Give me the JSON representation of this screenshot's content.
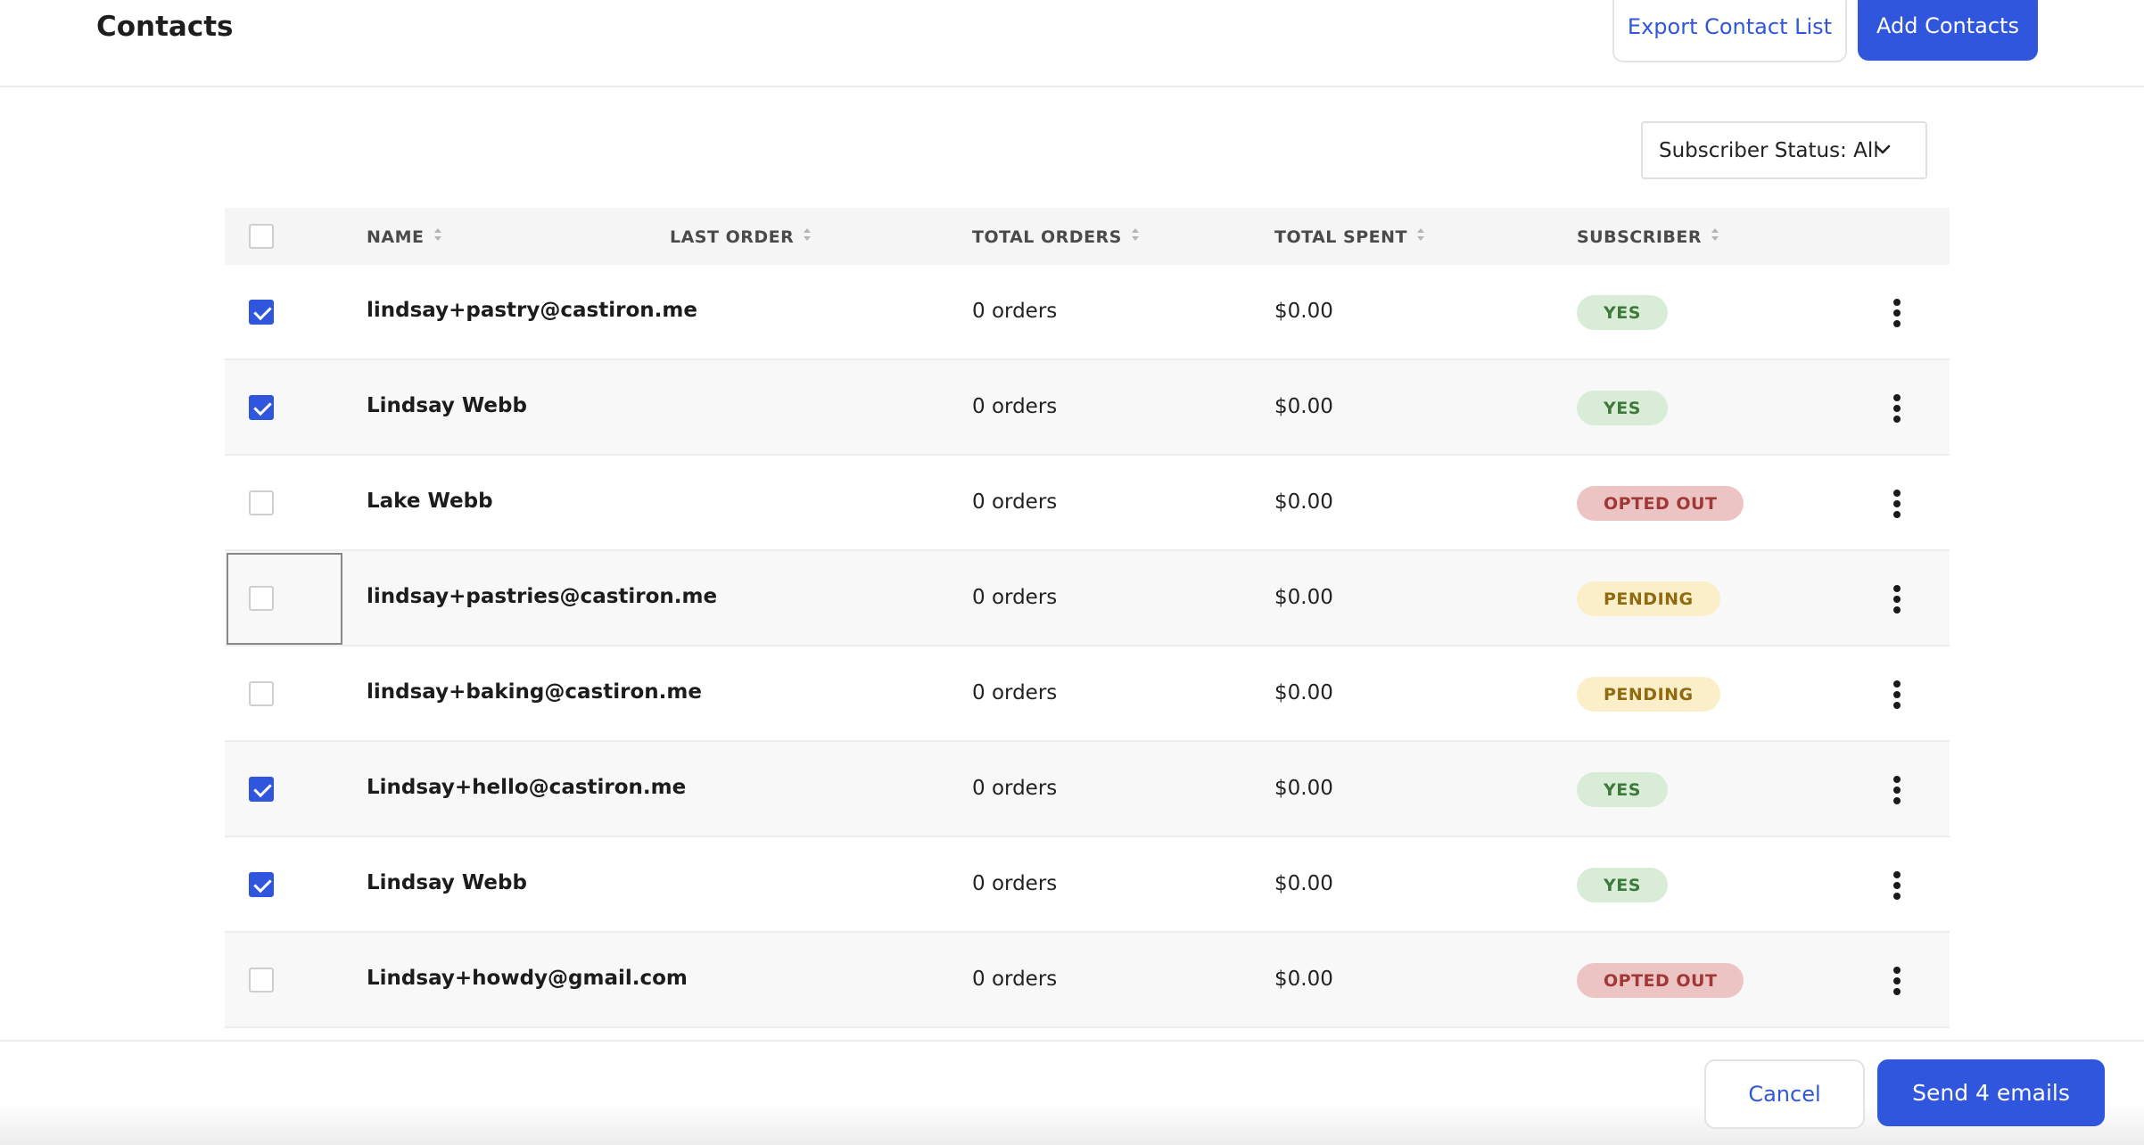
{
  "header": {
    "title": "Contacts",
    "export_label": "Export Contact List",
    "add_label": "Add Contacts"
  },
  "filter": {
    "label": "Subscriber Status: All"
  },
  "table": {
    "columns": [
      "NAME",
      "LAST ORDER",
      "TOTAL ORDERS",
      "TOTAL SPENT",
      "SUBSCRIBER"
    ],
    "rows": [
      {
        "name": "lindsay+pastry@castiron.me",
        "last_order": "",
        "orders": "0 orders",
        "spent": "$0.00",
        "status": "YES",
        "checked": true
      },
      {
        "name": "Lindsay Webb",
        "last_order": "",
        "orders": "0 orders",
        "spent": "$0.00",
        "status": "YES",
        "checked": true
      },
      {
        "name": "Lake Webb",
        "last_order": "",
        "orders": "0 orders",
        "spent": "$0.00",
        "status": "OPTED OUT",
        "checked": false
      },
      {
        "name": "lindsay+pastries@castiron.me",
        "last_order": "",
        "orders": "0 orders",
        "spent": "$0.00",
        "status": "PENDING",
        "checked": false,
        "focused": true
      },
      {
        "name": "lindsay+baking@castiron.me",
        "last_order": "",
        "orders": "0 orders",
        "spent": "$0.00",
        "status": "PENDING",
        "checked": false
      },
      {
        "name": "Lindsay+hello@castiron.me",
        "last_order": "",
        "orders": "0 orders",
        "spent": "$0.00",
        "status": "YES",
        "checked": true
      },
      {
        "name": "Lindsay Webb",
        "last_order": "",
        "orders": "0 orders",
        "spent": "$0.00",
        "status": "YES",
        "checked": true
      },
      {
        "name": "Lindsay+howdy@gmail.com",
        "last_order": "",
        "orders": "0 orders",
        "spent": "$0.00",
        "status": "OPTED OUT",
        "checked": false
      }
    ]
  },
  "footer": {
    "cancel_label": "Cancel",
    "send_label": "Send 4 emails"
  },
  "colors": {
    "primary": "#2f56dc",
    "yes_bg": "#d9ecd8",
    "opted_out_bg": "#edc4c4",
    "pending_bg": "#fbefc9"
  },
  "icons": {
    "filter": "chevron-down-icon",
    "sort": "sort-icon",
    "row_menu": "more-vertical-icon"
  }
}
